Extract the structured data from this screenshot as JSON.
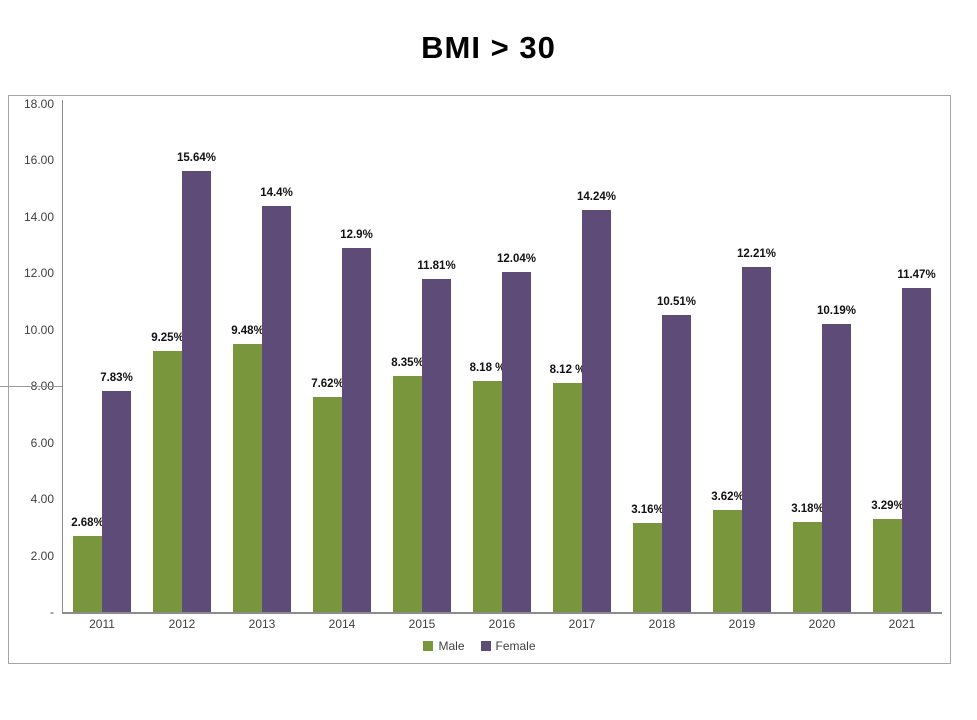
{
  "page": {
    "background": "#ffffff"
  },
  "chart_data": {
    "type": "bar",
    "title": "BMI > 30",
    "categories": [
      "2011",
      "2012",
      "2013",
      "2014",
      "2015",
      "2016",
      "2017",
      "2018",
      "2019",
      "2020",
      "2021"
    ],
    "series": [
      {
        "name": "Male",
        "color": "#7a963c",
        "values": [
          2.68,
          9.25,
          9.48,
          7.62,
          8.35,
          8.18,
          8.12,
          3.16,
          3.62,
          3.18,
          3.29
        ],
        "labels": [
          "2.68%",
          "9.25%",
          "9.48%",
          "7.62%",
          "8.35%",
          "8.18 %",
          "8.12 %",
          "3.16%",
          "3.62%",
          "3.18%",
          "3.29%"
        ]
      },
      {
        "name": "Female",
        "color": "#5f4b78",
        "values": [
          7.83,
          15.64,
          14.4,
          12.9,
          11.81,
          12.04,
          14.24,
          10.51,
          12.21,
          10.19,
          11.47
        ],
        "labels": [
          "7.83%",
          "15.64%",
          "14.4%",
          "12.9%",
          "11.81%",
          "12.04%",
          "14.24%",
          "10.51%",
          "12.21%",
          "10.19%",
          "11.47%"
        ]
      }
    ],
    "ylim": [
      0,
      18
    ],
    "ytick_step": 2,
    "ytick_labels": [
      "-",
      "2.00",
      "4.00",
      "6.00",
      "8.00",
      "10.00",
      "12.00",
      "14.00",
      "16.00",
      "18.00"
    ],
    "grid": false,
    "legend_position": "bottom",
    "axis_color": "#8c8c8c",
    "tick_label_color": "#3f3f3f",
    "data_label_color": "#111111"
  }
}
